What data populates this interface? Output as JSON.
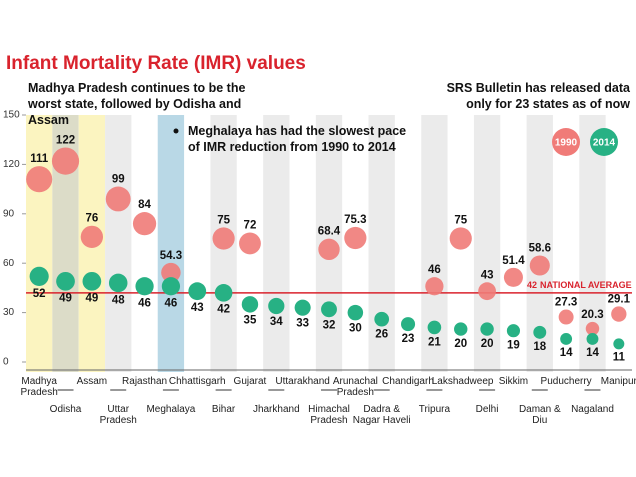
{
  "chart_data": {
    "type": "bubble-dot",
    "title": "Infant Mortality Rate (IMR) values",
    "annotations": [
      "Madhya Pradesh continues to be the worst state, followed by Odisha and Assam",
      "Meghalaya has had the slowest pace of IMR reduction from 1990 to 2014",
      "SRS Bulletin has released data only for 23 states as of now"
    ],
    "categories": [
      "Madhya Pradesh",
      "Odisha",
      "Assam",
      "Uttar Pradesh",
      "Rajasthan",
      "Meghalaya",
      "Chhattisgarh",
      "Bihar",
      "Gujarat",
      "Jharkhand",
      "Uttarakhand",
      "Himachal Pradesh",
      "Arunachal Pradesh",
      "Dadra & Nagar Haveli",
      "Chandigarh",
      "Tripura",
      "Lakshadweep",
      "Delhi",
      "Sikkim",
      "Daman & Diu",
      "Puducherry",
      "Nagaland",
      "Manipur"
    ],
    "band_colors": [
      "#fbf4c0",
      "#dcdcc8",
      "#fbf4c0",
      "#ebebeb",
      null,
      "#b9d8e6",
      null,
      "#ebebeb",
      null,
      "#ebebeb",
      null,
      "#ebebeb",
      null,
      "#ebebeb",
      null,
      "#ebebeb",
      null,
      "#ebebeb",
      null,
      "#ebebeb",
      null,
      "#ebebeb",
      null
    ],
    "series": [
      {
        "name": "1990",
        "color": "#f07b78",
        "values": [
          111,
          122,
          76,
          99,
          84,
          54.3,
          null,
          75,
          72,
          null,
          null,
          68.4,
          75.3,
          null,
          null,
          46,
          75,
          43,
          51.4,
          58.6,
          27.3,
          20.3,
          29.1
        ]
      },
      {
        "name": "2014",
        "color": "#27b184",
        "values": [
          52,
          49,
          49,
          48,
          46,
          46,
          43,
          42,
          35,
          34,
          33,
          32,
          30,
          26,
          23,
          21,
          20,
          20,
          19,
          18,
          14,
          14,
          11
        ]
      }
    ],
    "reference_line": {
      "value": 42,
      "label": "NATIONAL AVERAGE",
      "color": "#d9232d"
    },
    "ylim": [
      0,
      150
    ],
    "yticks": [
      0,
      30,
      60,
      90,
      120,
      150
    ],
    "grid": false
  }
}
